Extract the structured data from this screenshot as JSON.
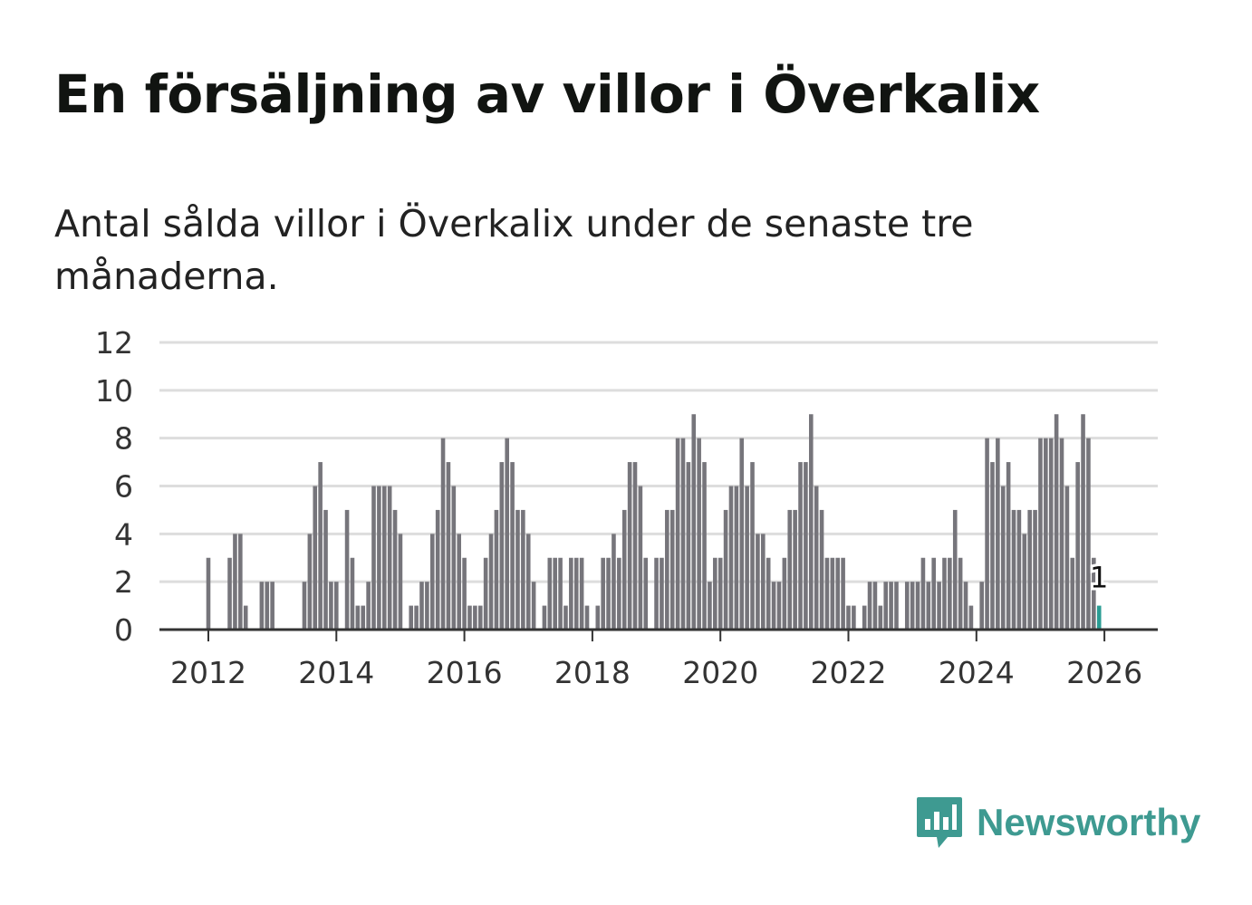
{
  "title": "En försäljning av villor i Överkalix",
  "subtitle": "Antal sålda villor i Överkalix under de senaste tre månaderna.",
  "brand": {
    "name": "Newsworthy",
    "color": "#3e9a91",
    "icon": "newsworthy-logo-icon"
  },
  "colors": {
    "bar": "#76757b",
    "highlight": "#2a9d94",
    "grid": "#dddddd"
  },
  "chart_data": {
    "type": "bar",
    "title": "",
    "xlabel": "",
    "ylabel": "",
    "ylim": [
      0,
      12
    ],
    "yticks": [
      0,
      2,
      4,
      6,
      8,
      10,
      12
    ],
    "xticks": [
      {
        "label": "2012",
        "year": 2012
      },
      {
        "label": "2014",
        "year": 2014
      },
      {
        "label": "2016",
        "year": 2016
      },
      {
        "label": "2018",
        "year": 2018
      },
      {
        "label": "2020",
        "year": 2020
      },
      {
        "label": "2022",
        "year": 2022
      },
      {
        "label": "2024",
        "year": 2024
      },
      {
        "label": "2026",
        "year": 2026
      }
    ],
    "start": "2011-03",
    "grid": true,
    "values": [
      0,
      0,
      0,
      0,
      0,
      0,
      0,
      0,
      0,
      0,
      3,
      0,
      0,
      0,
      3,
      4,
      4,
      1,
      0,
      0,
      2,
      2,
      2,
      0,
      0,
      0,
      0,
      0,
      2,
      4,
      6,
      7,
      5,
      2,
      2,
      0,
      5,
      3,
      1,
      1,
      2,
      6,
      6,
      6,
      6,
      5,
      4,
      0,
      1,
      1,
      2,
      2,
      4,
      5,
      8,
      7,
      6,
      4,
      3,
      1,
      1,
      1,
      3,
      4,
      5,
      7,
      8,
      7,
      5,
      5,
      4,
      2,
      0,
      1,
      3,
      3,
      3,
      1,
      3,
      3,
      3,
      1,
      0,
      1,
      3,
      3,
      4,
      3,
      5,
      7,
      7,
      6,
      3,
      0,
      3,
      3,
      5,
      5,
      8,
      8,
      7,
      9,
      8,
      7,
      2,
      3,
      3,
      5,
      6,
      6,
      8,
      6,
      7,
      4,
      4,
      3,
      2,
      2,
      3,
      5,
      5,
      7,
      7,
      9,
      6,
      5,
      3,
      3,
      3,
      3,
      1,
      1,
      0,
      1,
      2,
      2,
      1,
      2,
      2,
      2,
      0,
      2,
      2,
      2,
      3,
      2,
      3,
      2,
      3,
      3,
      5,
      3,
      2,
      1,
      0,
      2,
      8,
      7,
      8,
      6,
      7,
      5,
      5,
      4,
      5,
      5,
      8,
      8,
      8,
      9,
      8,
      6,
      3,
      7,
      9,
      8,
      3,
      1
    ],
    "highlight_label": "1"
  }
}
